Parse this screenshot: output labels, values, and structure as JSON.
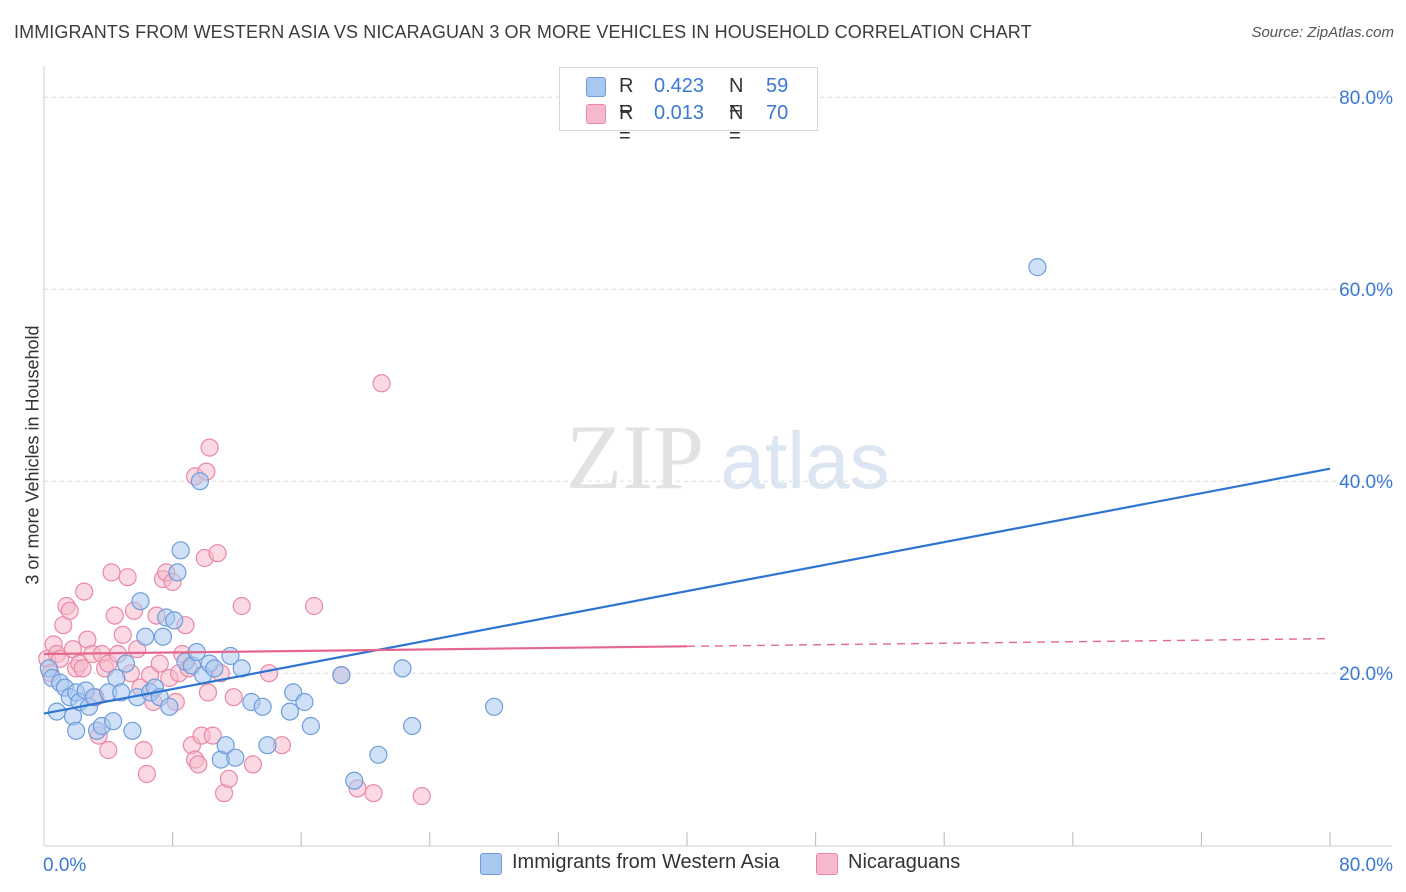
{
  "title": "IMMIGRANTS FROM WESTERN ASIA VS NICARAGUAN 3 OR MORE VEHICLES IN HOUSEHOLD CORRELATION CHART",
  "source": "Source: ZipAtlas.com",
  "watermark": {
    "zip": "ZIP",
    "atlas": "atlas"
  },
  "legend": {
    "r_label": "R =",
    "n_label": "N =",
    "series": [
      {
        "name": "Immigrants from Western Asia",
        "r": "0.423",
        "n": "59",
        "fill": "#a9c8f0",
        "stroke": "#6e9ddb"
      },
      {
        "name": "Nicaraguans",
        "r": "0.013",
        "n": "70",
        "fill": "#f6b9cb",
        "stroke": "#ea88a8"
      }
    ]
  },
  "chart_data": {
    "type": "scatter",
    "title": "IMMIGRANTS FROM WESTERN ASIA VS NICARAGUAN 3 OR MORE VEHICLES IN HOUSEHOLD CORRELATION CHART",
    "ylabel": "3 or more Vehicles in Household",
    "xlabel": "",
    "xlim": [
      0,
      80
    ],
    "ylim": [
      2,
      82
    ],
    "x_tick_labels": [
      "0.0%",
      "80.0%"
    ],
    "y_ticks": [
      20,
      40,
      60,
      80
    ],
    "y_tick_labels": [
      "20.0%",
      "40.0%",
      "60.0%",
      "80.0%"
    ],
    "grid": "horizontal dashed",
    "series": [
      {
        "name": "Immigrants from Western Asia",
        "color": "#4f8ddb",
        "line_color": "#2f74d0",
        "trend": {
          "x0": 0,
          "y0": 15.8,
          "x1": 80,
          "y1": 41.3,
          "dashed_from": null
        },
        "points": [
          [
            0.3,
            20.5
          ],
          [
            0.5,
            19.5
          ],
          [
            0.8,
            16.0
          ],
          [
            1.0,
            19.0
          ],
          [
            1.3,
            18.5
          ],
          [
            1.6,
            17.5
          ],
          [
            1.8,
            15.5
          ],
          [
            2.0,
            18.0
          ],
          [
            2.2,
            17.0
          ],
          [
            2.6,
            18.2
          ],
          [
            2.8,
            16.5
          ],
          [
            3.1,
            17.5
          ],
          [
            3.3,
            14.0
          ],
          [
            3.6,
            14.5
          ],
          [
            4.0,
            18.0
          ],
          [
            4.3,
            15.0
          ],
          [
            4.5,
            19.5
          ],
          [
            4.8,
            18.0
          ],
          [
            5.1,
            21.0
          ],
          [
            5.5,
            14.0
          ],
          [
            5.8,
            17.5
          ],
          [
            6.0,
            27.5
          ],
          [
            6.3,
            23.8
          ],
          [
            6.6,
            18.0
          ],
          [
            6.9,
            18.5
          ],
          [
            7.2,
            17.5
          ],
          [
            7.4,
            23.8
          ],
          [
            7.6,
            25.8
          ],
          [
            7.8,
            16.5
          ],
          [
            8.1,
            25.5
          ],
          [
            8.3,
            30.5
          ],
          [
            8.5,
            32.8
          ],
          [
            8.8,
            21.2
          ],
          [
            9.2,
            20.8
          ],
          [
            9.5,
            22.2
          ],
          [
            9.9,
            19.8
          ],
          [
            10.3,
            21.0
          ],
          [
            10.6,
            20.5
          ],
          [
            11.0,
            11.0
          ],
          [
            11.3,
            12.5
          ],
          [
            11.6,
            21.8
          ],
          [
            11.9,
            11.2
          ],
          [
            12.3,
            20.5
          ],
          [
            12.9,
            17.0
          ],
          [
            13.6,
            16.5
          ],
          [
            13.9,
            12.5
          ],
          [
            15.3,
            16.0
          ],
          [
            15.5,
            18.0
          ],
          [
            16.2,
            17.0
          ],
          [
            16.6,
            14.5
          ],
          [
            18.5,
            19.8
          ],
          [
            19.3,
            8.8
          ],
          [
            20.8,
            11.5
          ],
          [
            22.3,
            20.5
          ],
          [
            22.9,
            14.5
          ],
          [
            28.0,
            16.5
          ],
          [
            9.7,
            40.0
          ],
          [
            61.8,
            62.3
          ],
          [
            2.0,
            14.0
          ]
        ]
      },
      {
        "name": "Nicaraguans",
        "color": "#ea88a8",
        "line_color": "#e5678e",
        "trend": {
          "x0": 0,
          "y0": 22.0,
          "x1": 80,
          "y1": 23.6,
          "dashed_from": 40
        },
        "points": [
          [
            0.2,
            21.5
          ],
          [
            0.4,
            20.0
          ],
          [
            0.6,
            23.0
          ],
          [
            0.8,
            22.0
          ],
          [
            1.0,
            21.5
          ],
          [
            1.2,
            25.0
          ],
          [
            1.4,
            27.0
          ],
          [
            1.6,
            26.5
          ],
          [
            1.8,
            22.5
          ],
          [
            2.0,
            20.5
          ],
          [
            2.2,
            21.0
          ],
          [
            2.4,
            20.5
          ],
          [
            2.5,
            28.5
          ],
          [
            2.7,
            23.5
          ],
          [
            3.0,
            22.0
          ],
          [
            3.2,
            17.5
          ],
          [
            3.4,
            13.5
          ],
          [
            3.6,
            22.0
          ],
          [
            3.8,
            20.5
          ],
          [
            4.0,
            21.0
          ],
          [
            4.2,
            30.5
          ],
          [
            4.4,
            26.0
          ],
          [
            4.6,
            22.0
          ],
          [
            4.9,
            24.0
          ],
          [
            5.2,
            30.0
          ],
          [
            5.4,
            20.0
          ],
          [
            5.6,
            26.5
          ],
          [
            5.8,
            22.5
          ],
          [
            6.0,
            18.5
          ],
          [
            6.2,
            12.0
          ],
          [
            6.4,
            9.5
          ],
          [
            6.6,
            19.8
          ],
          [
            6.8,
            17.0
          ],
          [
            7.0,
            26.0
          ],
          [
            7.2,
            21.0
          ],
          [
            7.4,
            29.8
          ],
          [
            7.6,
            30.5
          ],
          [
            7.8,
            19.5
          ],
          [
            8.0,
            29.5
          ],
          [
            8.2,
            17.0
          ],
          [
            8.4,
            20.0
          ],
          [
            8.6,
            22.0
          ],
          [
            8.8,
            25.0
          ],
          [
            9.0,
            20.5
          ],
          [
            9.2,
            12.5
          ],
          [
            9.4,
            11.0
          ],
          [
            9.6,
            10.5
          ],
          [
            9.8,
            13.5
          ],
          [
            10.0,
            32.0
          ],
          [
            10.2,
            18.0
          ],
          [
            10.5,
            13.5
          ],
          [
            10.8,
            32.5
          ],
          [
            11.0,
            20.0
          ],
          [
            11.2,
            7.5
          ],
          [
            11.5,
            9.0
          ],
          [
            11.8,
            17.5
          ],
          [
            12.3,
            27.0
          ],
          [
            13.0,
            10.5
          ],
          [
            14.0,
            20.0
          ],
          [
            14.8,
            12.5
          ],
          [
            16.8,
            27.0
          ],
          [
            18.5,
            19.8
          ],
          [
            19.5,
            8.0
          ],
          [
            20.5,
            7.5
          ],
          [
            21.0,
            50.2
          ],
          [
            23.5,
            7.2
          ],
          [
            9.4,
            40.5
          ],
          [
            10.3,
            43.5
          ],
          [
            10.1,
            41.0
          ],
          [
            4.0,
            12.0
          ]
        ]
      }
    ]
  }
}
